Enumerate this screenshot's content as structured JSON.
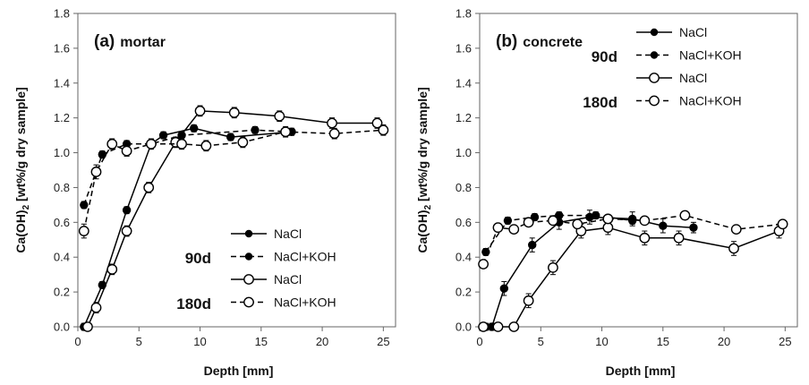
{
  "chart_data": [
    {
      "type": "line",
      "title_letter": "(a)",
      "title_text": "mortar",
      "xlabel": "Depth [mm]",
      "ylabel_main": "Ca(OH)",
      "ylabel_sub": "2",
      "ylabel_rest": " [wt%/g dry sample]",
      "xlim": [
        0,
        26
      ],
      "ylim": [
        0,
        1.8
      ],
      "xticks": [
        "0",
        "5",
        "10",
        "15",
        "20",
        "25"
      ],
      "yticks": [
        "0.0",
        "0.2",
        "0.4",
        "0.6",
        "0.8",
        "1.0",
        "1.2",
        "1.4",
        "1.6",
        "1.8"
      ],
      "grid": false,
      "legend_position": "lower-right",
      "series": [
        {
          "name": "NaCl",
          "group": "90d",
          "marker": "filled",
          "line": "solid",
          "x": [
            0.5,
            2.0,
            4.0,
            6.0,
            7.0,
            9.5,
            12.5,
            17.5
          ],
          "y": [
            0.0,
            0.24,
            0.67,
            1.05,
            1.1,
            1.14,
            1.09,
            1.12
          ],
          "err": [
            0.02,
            0.02,
            0.02,
            0.02,
            0.02,
            0.02,
            0.02,
            0.02
          ]
        },
        {
          "name": "NaCl+KOH",
          "group": "90d",
          "marker": "filled",
          "line": "dashed",
          "x": [
            0.5,
            2.0,
            4.0,
            6.0,
            8.5,
            14.5,
            17.5
          ],
          "y": [
            0.7,
            0.99,
            1.05,
            1.05,
            1.1,
            1.13,
            1.12
          ],
          "err": [
            0.02,
            0.02,
            0.02,
            0.02,
            0.02,
            0.02,
            0.02
          ]
        },
        {
          "name": "NaCl",
          "group": "180d",
          "marker": "open",
          "line": "solid",
          "x": [
            0.8,
            1.5,
            2.8,
            4.0,
            5.8,
            8.0,
            10.0,
            12.8,
            16.5,
            20.8,
            24.5
          ],
          "y": [
            0.0,
            0.11,
            0.33,
            0.55,
            0.8,
            1.06,
            1.24,
            1.23,
            1.21,
            1.17,
            1.17
          ],
          "err": [
            0.02,
            0.03,
            0.03,
            0.03,
            0.03,
            0.03,
            0.03,
            0.03,
            0.03,
            0.03,
            0.03
          ]
        },
        {
          "name": "NaCl+KOH",
          "group": "180d",
          "marker": "open",
          "line": "dashed",
          "x": [
            0.5,
            1.5,
            2.8,
            4.0,
            6.0,
            8.5,
            10.5,
            13.5,
            17.0,
            21.0,
            25.0
          ],
          "y": [
            0.55,
            0.89,
            1.05,
            1.01,
            1.05,
            1.05,
            1.04,
            1.06,
            1.12,
            1.11,
            1.13
          ],
          "err": [
            0.04,
            0.04,
            0.03,
            0.03,
            0.03,
            0.03,
            0.03,
            0.03,
            0.03,
            0.03,
            0.03
          ]
        }
      ]
    },
    {
      "type": "line",
      "title_letter": "(b)",
      "title_text": "concrete",
      "xlabel": "Depth [mm]",
      "ylabel_main": "Ca(OH)",
      "ylabel_sub": "2",
      "ylabel_rest": " [wt%/g dry sample]",
      "xlim": [
        0,
        26
      ],
      "ylim": [
        0,
        1.8
      ],
      "xticks": [
        "0",
        "5",
        "10",
        "15",
        "20",
        "25"
      ],
      "yticks": [
        "0.0",
        "0.2",
        "0.4",
        "0.6",
        "0.8",
        "1.0",
        "1.2",
        "1.4",
        "1.6",
        "1.8"
      ],
      "grid": false,
      "legend_position": "upper-right",
      "series": [
        {
          "name": "NaCl",
          "group": "90d",
          "marker": "filled",
          "line": "solid",
          "x": [
            0.5,
            1.0,
            2.0,
            4.3,
            6.5,
            9.0,
            12.5,
            15.0,
            17.5
          ],
          "y": [
            0.0,
            0.0,
            0.22,
            0.47,
            0.6,
            0.63,
            0.62,
            0.58,
            0.57
          ],
          "err": [
            0.02,
            0.02,
            0.04,
            0.04,
            0.04,
            0.04,
            0.04,
            0.04,
            0.03
          ]
        },
        {
          "name": "NaCl+KOH",
          "group": "90d",
          "marker": "filled",
          "line": "dashed",
          "x": [
            0.5,
            2.3,
            4.5,
            6.5,
            9.5,
            12.5
          ],
          "y": [
            0.43,
            0.61,
            0.63,
            0.64,
            0.64,
            0.61
          ],
          "err": [
            0.02,
            0.02,
            0.02,
            0.02,
            0.02,
            0.02
          ]
        },
        {
          "name": "NaCl",
          "group": "180d",
          "marker": "open",
          "line": "solid",
          "x": [
            0.3,
            1.5,
            2.8,
            4.0,
            6.0,
            8.3,
            10.5,
            13.5,
            16.3,
            20.8,
            24.5
          ],
          "y": [
            0.0,
            0.0,
            0.0,
            0.15,
            0.34,
            0.55,
            0.57,
            0.51,
            0.51,
            0.45,
            0.55
          ],
          "err": [
            0.02,
            0.02,
            0.02,
            0.04,
            0.04,
            0.04,
            0.04,
            0.04,
            0.04,
            0.04,
            0.04
          ]
        },
        {
          "name": "NaCl+KOH",
          "group": "180d",
          "marker": "open",
          "line": "dashed",
          "x": [
            0.3,
            1.5,
            2.8,
            4.0,
            6.0,
            8.0,
            10.5,
            13.5,
            16.8,
            21.0,
            24.8
          ],
          "y": [
            0.36,
            0.57,
            0.56,
            0.6,
            0.61,
            0.59,
            0.62,
            0.61,
            0.64,
            0.56,
            0.59
          ],
          "err": [
            0.02,
            0.02,
            0.02,
            0.02,
            0.02,
            0.02,
            0.02,
            0.02,
            0.02,
            0.02,
            0.02
          ]
        }
      ]
    }
  ]
}
